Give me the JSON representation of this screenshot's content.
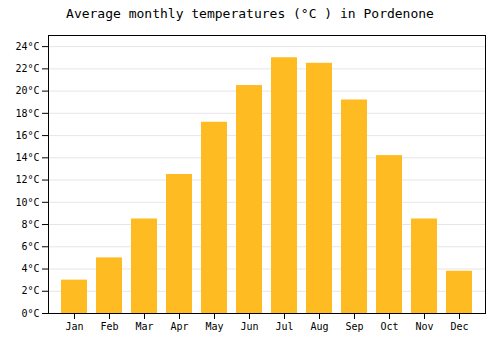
{
  "chart_data": {
    "type": "bar",
    "title": "Average monthly temperatures (°C ) in Pordenone",
    "categories": [
      "Jan",
      "Feb",
      "Mar",
      "Apr",
      "May",
      "Jun",
      "Jul",
      "Aug",
      "Sep",
      "Oct",
      "Nov",
      "Dec"
    ],
    "values": [
      3.0,
      5.0,
      8.5,
      12.5,
      17.2,
      20.5,
      23.0,
      22.5,
      19.2,
      14.2,
      8.5,
      3.8
    ],
    "color": "#FFBB22",
    "ylim": [
      0,
      25
    ],
    "yticks": [
      {
        "value": 0,
        "label": "0°C"
      },
      {
        "value": 2,
        "label": "2°C"
      },
      {
        "value": 4,
        "label": "4°C"
      },
      {
        "value": 6,
        "label": "6°C"
      },
      {
        "value": 8,
        "label": "8°C"
      },
      {
        "value": 10,
        "label": "10°C"
      },
      {
        "value": 12,
        "label": "12°C"
      },
      {
        "value": 14,
        "label": "14°C"
      },
      {
        "value": 16,
        "label": "16°C"
      },
      {
        "value": 18,
        "label": "18°C"
      },
      {
        "value": 20,
        "label": "20°C"
      },
      {
        "value": 22,
        "label": "22°C"
      },
      {
        "value": 24,
        "label": "24°C"
      }
    ],
    "grid": true
  }
}
